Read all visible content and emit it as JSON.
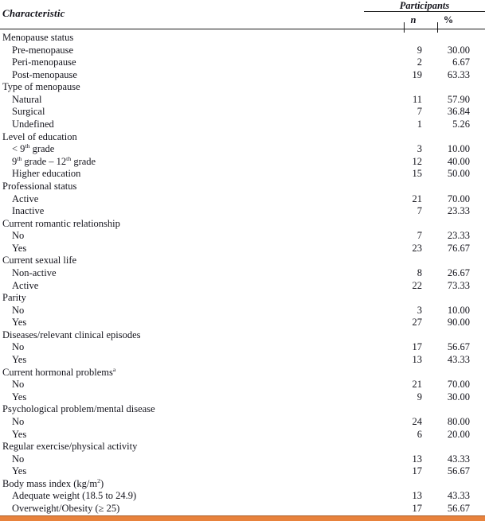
{
  "header": {
    "characteristic": "Characteristic",
    "participants": "Participants",
    "n": "n",
    "pct": "%"
  },
  "groups": [
    {
      "label": [
        {
          "t": "Menopause status"
        }
      ],
      "rows": [
        {
          "label": [
            {
              "t": "Pre-menopause"
            }
          ],
          "n": "9",
          "pct": "30.00"
        },
        {
          "label": [
            {
              "t": "Peri-menopause"
            }
          ],
          "n": "2",
          "pct": "6.67"
        },
        {
          "label": [
            {
              "t": "Post-menopause"
            }
          ],
          "n": "19",
          "pct": "63.33"
        }
      ]
    },
    {
      "label": [
        {
          "t": "Type of menopause"
        }
      ],
      "rows": [
        {
          "label": [
            {
              "t": "Natural"
            }
          ],
          "n": "11",
          "pct": "57.90"
        },
        {
          "label": [
            {
              "t": "Surgical"
            }
          ],
          "n": "7",
          "pct": "36.84"
        },
        {
          "label": [
            {
              "t": "Undefined"
            }
          ],
          "n": "1",
          "pct": "5.26"
        }
      ]
    },
    {
      "label": [
        {
          "t": "Level of education"
        }
      ],
      "rows": [
        {
          "label": [
            {
              "t": "< 9"
            },
            {
              "sup": "th"
            },
            {
              "t": " grade"
            }
          ],
          "n": "3",
          "pct": "10.00"
        },
        {
          "label": [
            {
              "t": "9"
            },
            {
              "sup": "th"
            },
            {
              "t": " grade – 12"
            },
            {
              "sup": "th"
            },
            {
              "t": " grade"
            }
          ],
          "n": "12",
          "pct": "40.00"
        },
        {
          "label": [
            {
              "t": "Higher education"
            }
          ],
          "n": "15",
          "pct": "50.00"
        }
      ]
    },
    {
      "label": [
        {
          "t": "Professional status"
        }
      ],
      "rows": [
        {
          "label": [
            {
              "t": "Active"
            }
          ],
          "n": "21",
          "pct": "70.00"
        },
        {
          "label": [
            {
              "t": "Inactive"
            }
          ],
          "n": "7",
          "pct": "23.33"
        }
      ]
    },
    {
      "label": [
        {
          "t": "Current romantic relationship"
        }
      ],
      "rows": [
        {
          "label": [
            {
              "t": "No"
            }
          ],
          "n": "7",
          "pct": "23.33"
        },
        {
          "label": [
            {
              "t": "Yes"
            }
          ],
          "n": "23",
          "pct": "76.67"
        }
      ]
    },
    {
      "label": [
        {
          "t": "Current sexual life"
        }
      ],
      "rows": [
        {
          "label": [
            {
              "t": "Non-active"
            }
          ],
          "n": "8",
          "pct": "26.67"
        },
        {
          "label": [
            {
              "t": "Active"
            }
          ],
          "n": "22",
          "pct": "73.33"
        }
      ]
    },
    {
      "label": [
        {
          "t": "Parity"
        }
      ],
      "rows": [
        {
          "label": [
            {
              "t": "No"
            }
          ],
          "n": "3",
          "pct": "10.00"
        },
        {
          "label": [
            {
              "t": "Yes"
            }
          ],
          "n": "27",
          "pct": "90.00"
        }
      ]
    },
    {
      "label": [
        {
          "t": "Diseases/relevant clinical episodes"
        }
      ],
      "rows": [
        {
          "label": [
            {
              "t": "No"
            }
          ],
          "n": "17",
          "pct": "56.67"
        },
        {
          "label": [
            {
              "t": "Yes"
            }
          ],
          "n": "13",
          "pct": "43.33"
        }
      ]
    },
    {
      "label": [
        {
          "t": "Current hormonal problems"
        },
        {
          "sup": "a"
        }
      ],
      "rows": [
        {
          "label": [
            {
              "t": "No"
            }
          ],
          "n": "21",
          "pct": "70.00"
        },
        {
          "label": [
            {
              "t": "Yes"
            }
          ],
          "n": "9",
          "pct": "30.00"
        }
      ]
    },
    {
      "label": [
        {
          "t": "Psychological problem/mental disease"
        }
      ],
      "rows": [
        {
          "label": [
            {
              "t": "No"
            }
          ],
          "n": "24",
          "pct": "80.00"
        },
        {
          "label": [
            {
              "t": "Yes"
            }
          ],
          "n": "6",
          "pct": "20.00"
        }
      ]
    },
    {
      "label": [
        {
          "t": "Regular exercise/physical activity"
        }
      ],
      "rows": [
        {
          "label": [
            {
              "t": "No"
            }
          ],
          "n": "13",
          "pct": "43.33"
        },
        {
          "label": [
            {
              "t": "Yes"
            }
          ],
          "n": "17",
          "pct": "56.67"
        }
      ]
    },
    {
      "label": [
        {
          "t": "Body mass index (kg/m"
        },
        {
          "sup": "2"
        },
        {
          "t": ")"
        }
      ],
      "rows": [
        {
          "label": [
            {
              "t": "Adequate weight (18.5 to 24.9)"
            }
          ],
          "n": "13",
          "pct": "43.33"
        },
        {
          "label": [
            {
              "t": "Overweight/Obesity (≥ 25)"
            }
          ],
          "n": "17",
          "pct": "56.67"
        }
      ]
    }
  ],
  "colors": {
    "accent_bar": "#E8823C",
    "rule": "#1c1c1c",
    "text": "#14141c"
  }
}
